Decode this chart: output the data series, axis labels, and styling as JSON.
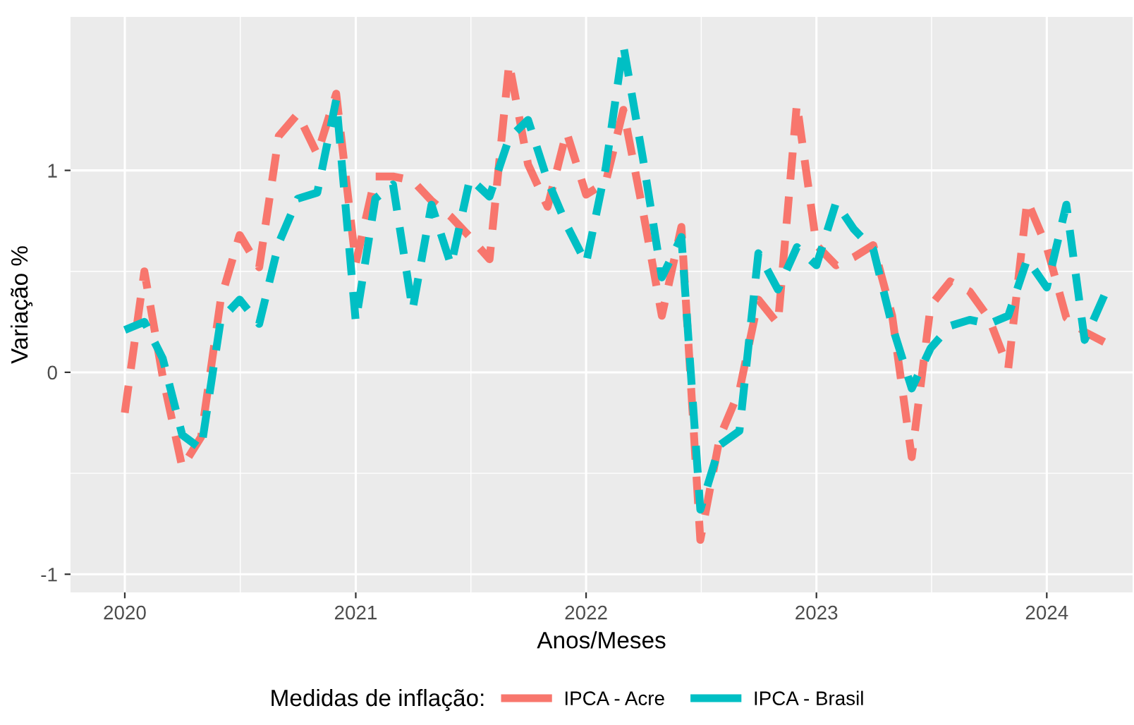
{
  "chart_data": {
    "type": "line",
    "xlabel": "Anos/Meses",
    "ylabel": "Variação %",
    "legend_title": "Medidas de inflação:",
    "x": [
      "2020-01",
      "2020-02",
      "2020-03",
      "2020-04",
      "2020-05",
      "2020-06",
      "2020-07",
      "2020-08",
      "2020-09",
      "2020-10",
      "2020-11",
      "2020-12",
      "2021-01",
      "2021-02",
      "2021-03",
      "2021-04",
      "2021-05",
      "2021-06",
      "2021-07",
      "2021-08",
      "2021-09",
      "2021-10",
      "2021-11",
      "2021-12",
      "2022-01",
      "2022-02",
      "2022-03",
      "2022-04",
      "2022-05",
      "2022-06",
      "2022-07",
      "2022-08",
      "2022-09",
      "2022-10",
      "2022-11",
      "2022-12",
      "2023-01",
      "2023-02",
      "2023-03",
      "2023-04",
      "2023-05",
      "2023-06",
      "2023-07",
      "2023-08",
      "2023-09",
      "2023-10",
      "2023-11",
      "2023-12",
      "2024-01",
      "2024-02",
      "2024-03",
      "2024-04"
    ],
    "series": [
      {
        "name": "IPCA - Acre",
        "color": "#f8766d",
        "values": [
          -0.2,
          0.5,
          -0.02,
          -0.47,
          -0.32,
          0.36,
          0.68,
          0.52,
          1.17,
          1.28,
          1.08,
          1.38,
          0.54,
          0.97,
          0.97,
          0.95,
          0.85,
          0.77,
          0.67,
          0.56,
          1.53,
          1.03,
          0.82,
          1.19,
          0.88,
          0.94,
          1.3,
          0.8,
          0.28,
          0.72,
          -0.83,
          -0.32,
          -0.09,
          0.36,
          0.24,
          1.33,
          0.63,
          0.53,
          0.57,
          0.63,
          0.28,
          -0.42,
          0.33,
          0.45,
          0.4,
          0.27,
          0.02,
          0.85,
          0.62,
          0.27,
          0.2,
          0.15
        ]
      },
      {
        "name": "IPCA - Brasil",
        "color": "#00bfc4",
        "values": [
          0.21,
          0.25,
          0.07,
          -0.31,
          -0.38,
          0.26,
          0.36,
          0.24,
          0.64,
          0.86,
          0.89,
          1.35,
          0.25,
          0.86,
          0.93,
          0.31,
          0.83,
          0.53,
          0.96,
          0.87,
          1.16,
          1.25,
          0.95,
          0.73,
          0.54,
          1.01,
          1.62,
          1.06,
          0.47,
          0.67,
          -0.68,
          -0.36,
          -0.29,
          0.59,
          0.41,
          0.62,
          0.53,
          0.84,
          0.71,
          0.61,
          0.23,
          -0.08,
          0.12,
          0.23,
          0.26,
          0.24,
          0.28,
          0.56,
          0.42,
          0.83,
          0.16,
          0.38
        ]
      }
    ],
    "xlim": [
      "2019-10-07",
      "2024-05-16"
    ],
    "xticks": [
      {
        "value": "2020-01-01",
        "label": "2020"
      },
      {
        "value": "2021-01-01",
        "label": "2021"
      },
      {
        "value": "2022-01-01",
        "label": "2022"
      },
      {
        "value": "2023-01-01",
        "label": "2023"
      },
      {
        "value": "2024-01-01",
        "label": "2024"
      }
    ],
    "ylim": [
      -1.09,
      1.76
    ],
    "yticks": [
      -1,
      0,
      1
    ],
    "grid": true,
    "legend": "bottom",
    "line_style": "dashed",
    "marker": "none"
  }
}
